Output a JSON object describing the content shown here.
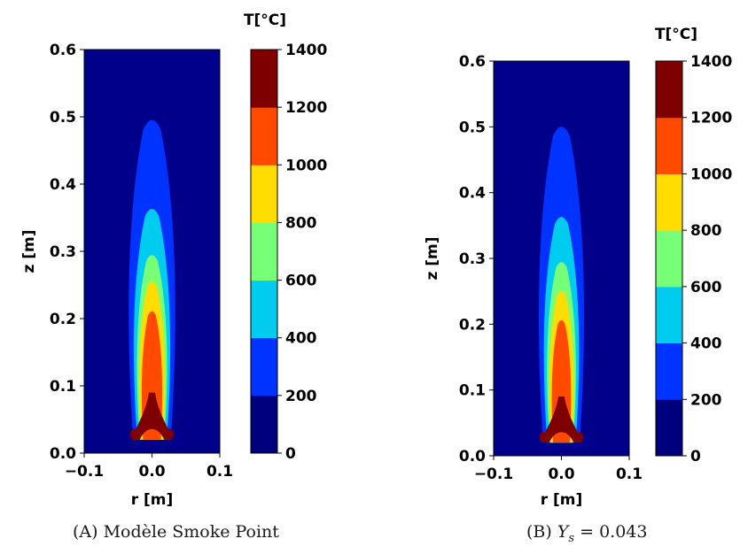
{
  "colors": {
    "background_field": "#00008b",
    "colormap": [
      "#00007f",
      "#0033ff",
      "#00ccf0",
      "#77ff77",
      "#ffdd00",
      "#ff4a00",
      "#7f0000"
    ]
  },
  "chart_data": [
    {
      "type": "heatmap",
      "title": "",
      "xlabel": "r [m]",
      "ylabel": "z [m]",
      "xlim": [
        -0.1,
        0.1
      ],
      "ylim": [
        0.0,
        0.6
      ],
      "x_tick_labels": [
        "−0.1",
        "0.0",
        "0.1"
      ],
      "y_tick_labels": [
        "0.0",
        "0.1",
        "0.2",
        "0.3",
        "0.4",
        "0.5",
        "0.6"
      ],
      "colorbar": {
        "label": "T[°C]",
        "levels": [
          0,
          200,
          400,
          600,
          800,
          1000,
          1200,
          1400
        ],
        "tick_labels": [
          "0",
          "200",
          "400",
          "600",
          "800",
          "1000",
          "1200",
          "1400"
        ]
      },
      "contours": [
        {
          "level": 200,
          "z_top": 0.505,
          "half_width_max": 0.037
        },
        {
          "level": 400,
          "z_top": 0.37,
          "half_width_max": 0.029
        },
        {
          "level": 600,
          "z_top": 0.3,
          "half_width_max": 0.024
        },
        {
          "level": 800,
          "z_top": 0.26,
          "half_width_max": 0.02
        },
        {
          "level": 1000,
          "z_top": 0.215,
          "half_width_max": 0.016
        },
        {
          "level": 1200,
          "z_top": 0.09,
          "half_width_max": 0.03
        }
      ],
      "caption_prefix": "(A)",
      "caption": "Modèle Smoke Point"
    },
    {
      "type": "heatmap",
      "title": "",
      "xlabel": "r [m]",
      "ylabel": "z [m]",
      "xlim": [
        -0.1,
        0.1
      ],
      "ylim": [
        0.0,
        0.6
      ],
      "x_tick_labels": [
        "−0.1",
        "0.0",
        "0.1"
      ],
      "y_tick_labels": [
        "0.0",
        "0.1",
        "0.2",
        "0.3",
        "0.4",
        "0.5",
        "0.6"
      ],
      "colorbar": {
        "label": "T[°C]",
        "levels": [
          0,
          200,
          400,
          600,
          800,
          1000,
          1200,
          1400
        ],
        "tick_labels": [
          "0",
          "200",
          "400",
          "600",
          "800",
          "1000",
          "1200",
          "1400"
        ]
      },
      "contours": [
        {
          "level": 200,
          "z_top": 0.51,
          "half_width_max": 0.036
        },
        {
          "level": 400,
          "z_top": 0.37,
          "half_width_max": 0.028
        },
        {
          "level": 600,
          "z_top": 0.3,
          "half_width_max": 0.023
        },
        {
          "level": 800,
          "z_top": 0.255,
          "half_width_max": 0.019
        },
        {
          "level": 1000,
          "z_top": 0.21,
          "half_width_max": 0.015
        },
        {
          "level": 1200,
          "z_top": 0.09,
          "half_width_max": 0.03
        }
      ],
      "caption_prefix": "(B)",
      "caption_symbol": "Y",
      "caption_subscript": "s",
      "caption_value": "= 0.043"
    }
  ]
}
